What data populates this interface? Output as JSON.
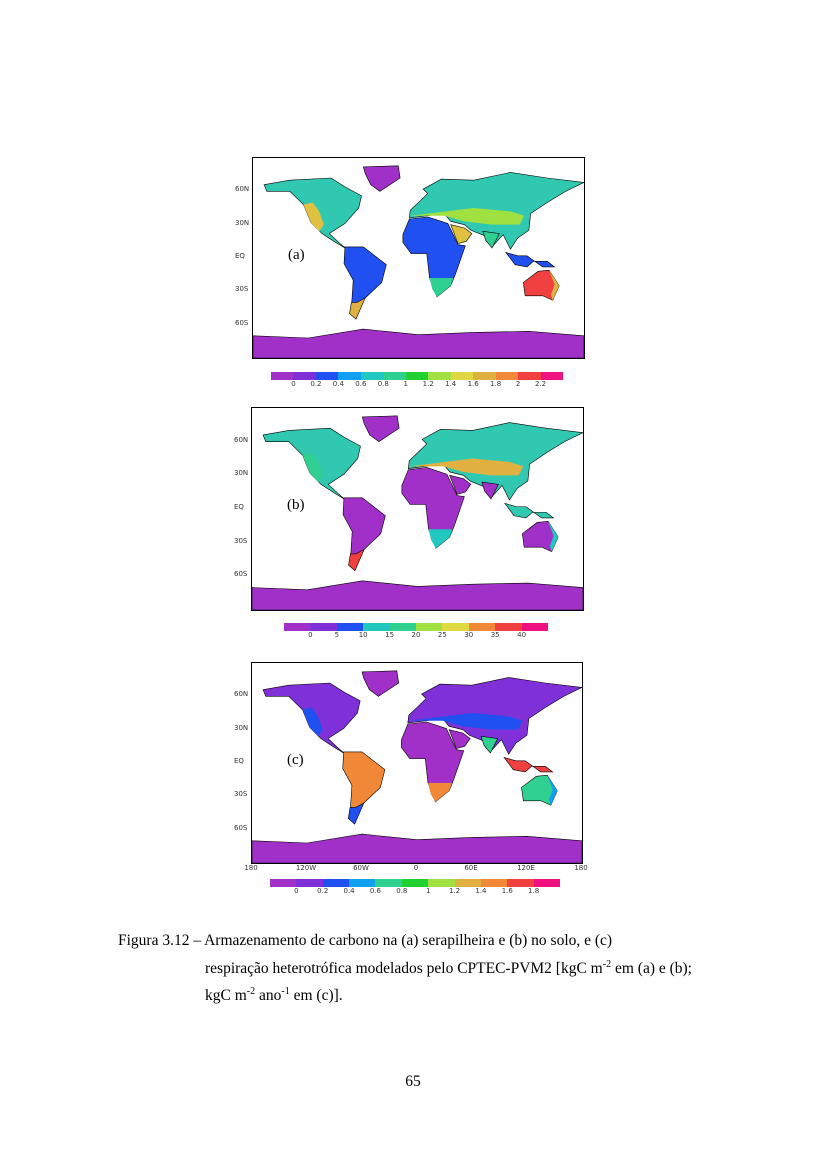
{
  "figure": {
    "lat_labels": [
      "60N",
      "30N",
      "EQ",
      "30S",
      "60S"
    ],
    "lon_labels": [
      "180",
      "120W",
      "60W",
      "0",
      "60E",
      "120E",
      "180"
    ],
    "panels": [
      {
        "label": "(a)",
        "colorbar": {
          "colors": [
            "#a030c8",
            "#8030d8",
            "#2050f0",
            "#10a0f0",
            "#20c8c0",
            "#30d090",
            "#20d030",
            "#a0e040",
            "#e0d840",
            "#e0b040",
            "#f08838",
            "#f04040",
            "#f01080"
          ],
          "labels": [
            "0",
            "0.2",
            "0.4",
            "0.6",
            "0.8",
            "1",
            "1.2",
            "1.4",
            "1.6",
            "1.8",
            "2",
            "2.2"
          ]
        },
        "region_colors": {
          "north_america": "#30c8b0",
          "north_america_west": "#e0c040",
          "greenland": "#a030c8",
          "south_america": "#2050f0",
          "patagonia": "#e0b040",
          "africa": "#2050f0",
          "africa_south": "#30d090",
          "eurasia": "#30c8b0",
          "eurasia_south": "#a0e040",
          "arabia": "#e0c040",
          "india": "#30d090",
          "australia": "#f04040",
          "australia_edge": "#e0b040",
          "indonesia": "#2050f0",
          "antarctica": "#a030c8"
        }
      },
      {
        "label": "(b)",
        "colorbar": {
          "colors": [
            "#a030c8",
            "#8030d8",
            "#2050f0",
            "#20c8c0",
            "#30d090",
            "#a0e040",
            "#e0d840",
            "#f08838",
            "#f04040",
            "#f01080"
          ],
          "labels": [
            "0",
            "5",
            "10",
            "15",
            "20",
            "25",
            "30",
            "35",
            "40"
          ]
        },
        "region_colors": {
          "north_america": "#30c8b0",
          "north_america_west": "#30d090",
          "greenland": "#a030c8",
          "south_america": "#a030c8",
          "patagonia": "#f04040",
          "africa": "#a030c8",
          "africa_south": "#20c8c0",
          "eurasia": "#30c8b0",
          "eurasia_south": "#e0b040",
          "arabia": "#a030c8",
          "india": "#a030c8",
          "australia": "#a030c8",
          "australia_edge": "#20c8c0",
          "indonesia": "#30c8b0",
          "antarctica": "#a030c8"
        }
      },
      {
        "label": "(c)",
        "colorbar": {
          "colors": [
            "#a030c8",
            "#8030d8",
            "#2050f0",
            "#10a0f0",
            "#30d090",
            "#20d030",
            "#a0e040",
            "#e0b040",
            "#f08838",
            "#f04040",
            "#f01080"
          ],
          "labels": [
            "0",
            "0.2",
            "0.4",
            "0.6",
            "0.8",
            "1",
            "1.2",
            "1.4",
            "1.6",
            "1.8"
          ]
        },
        "region_colors": {
          "north_america": "#8030d8",
          "north_america_west": "#2050f0",
          "greenland": "#a030c8",
          "south_america": "#f08838",
          "patagonia": "#2050f0",
          "africa": "#a030c8",
          "africa_south": "#f08838",
          "eurasia": "#8030d8",
          "eurasia_south": "#2050f0",
          "arabia": "#a030c8",
          "india": "#30d090",
          "australia": "#30d090",
          "australia_edge": "#10a0f0",
          "indonesia": "#f04040",
          "antarctica": "#a030c8"
        }
      }
    ]
  },
  "caption": {
    "line1": "Figura 3.12 – Armazenamento de carbono na (a) serapilheira e (b) no solo, e (c)",
    "part2": "respiração heterotrófica modelados pelo CPTEC-PVM2 [kgC m",
    "sup1": "-2",
    "part3": " em (a) e (b); kgC m",
    "sup2": "-2",
    "part4": " ano",
    "sup3": "-1",
    "part5": " em (c)]."
  },
  "page_number": "65"
}
